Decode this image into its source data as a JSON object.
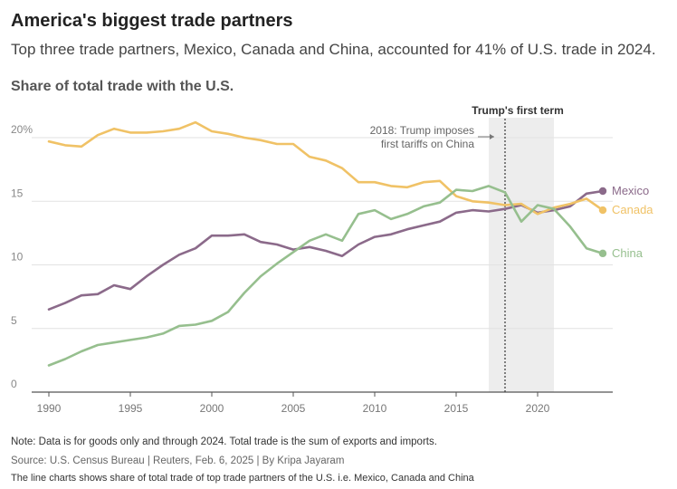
{
  "title": "America's biggest trade partners",
  "subtitle": "Top three trade partners, Mexico, Canada and China, accounted for 41% of U.S. trade in 2024.",
  "note": "Note: Data is for goods only and through 2024. Total trade is the sum of exports and imports.",
  "source": "Source: U.S. Census Bureau | Reuters, Feb. 6, 2025 | By Kripa Jayaram",
  "caption": "The line charts shows share of total trade of top trade partners of the U.S. i.e. Mexico, Canada and China",
  "chart_data": {
    "type": "line",
    "title": "Share of total trade with the U.S.",
    "ylim": [
      0,
      20
    ],
    "y_ticks": [
      0,
      5,
      10,
      15,
      20
    ],
    "y_tick_labels": [
      "0",
      "5",
      "10",
      "15",
      "20%"
    ],
    "xlim": [
      1990,
      2024
    ],
    "x_ticks": [
      1990,
      1995,
      2000,
      2005,
      2010,
      2015,
      2020
    ],
    "x_tick_labels": [
      "1990",
      "1995",
      "2000",
      "2005",
      "2010",
      "2015",
      "2020"
    ],
    "grid": "horizontal",
    "x": [
      1990,
      1991,
      1992,
      1993,
      1994,
      1995,
      1996,
      1997,
      1998,
      1999,
      2000,
      2001,
      2002,
      2003,
      2004,
      2005,
      2006,
      2007,
      2008,
      2009,
      2010,
      2011,
      2012,
      2013,
      2014,
      2015,
      2016,
      2017,
      2018,
      2019,
      2020,
      2021,
      2022,
      2023,
      2024
    ],
    "series": [
      {
        "name": "Mexico",
        "color": "#8b6a8a",
        "values": [
          6.5,
          7.0,
          7.6,
          7.7,
          8.4,
          8.1,
          9.1,
          10.0,
          10.8,
          11.3,
          12.3,
          12.3,
          12.4,
          11.8,
          11.6,
          11.2,
          11.4,
          11.1,
          10.7,
          11.6,
          12.2,
          12.4,
          12.8,
          13.1,
          13.4,
          14.1,
          14.3,
          14.2,
          14.4,
          14.7,
          14.1,
          14.3,
          14.6,
          15.6,
          15.8
        ]
      },
      {
        "name": "Canada",
        "color": "#f0c266",
        "values": [
          19.7,
          19.4,
          19.3,
          20.2,
          20.7,
          20.4,
          20.4,
          20.5,
          20.7,
          21.2,
          20.5,
          20.3,
          20.0,
          19.8,
          19.5,
          19.5,
          18.5,
          18.2,
          17.6,
          16.5,
          16.5,
          16.2,
          16.1,
          16.5,
          16.6,
          15.4,
          15.0,
          14.9,
          14.7,
          14.8,
          14.0,
          14.5,
          14.8,
          15.2,
          14.3
        ]
      },
      {
        "name": "China",
        "color": "#96bf8e",
        "values": [
          2.1,
          2.6,
          3.2,
          3.7,
          3.9,
          4.1,
          4.3,
          4.6,
          5.2,
          5.3,
          5.6,
          6.3,
          7.8,
          9.1,
          10.1,
          11.0,
          11.9,
          12.4,
          11.9,
          14.0,
          14.3,
          13.6,
          14.0,
          14.6,
          14.9,
          15.9,
          15.8,
          16.2,
          15.7,
          13.4,
          14.7,
          14.4,
          13.0,
          11.3,
          10.9
        ]
      }
    ],
    "shaded_region": {
      "from": 2017,
      "to": 2021,
      "label": "Trump's first term"
    },
    "vline": {
      "x": 2018,
      "label_lines": [
        "2018: Trump imposes",
        "first tariffs on China"
      ]
    }
  }
}
